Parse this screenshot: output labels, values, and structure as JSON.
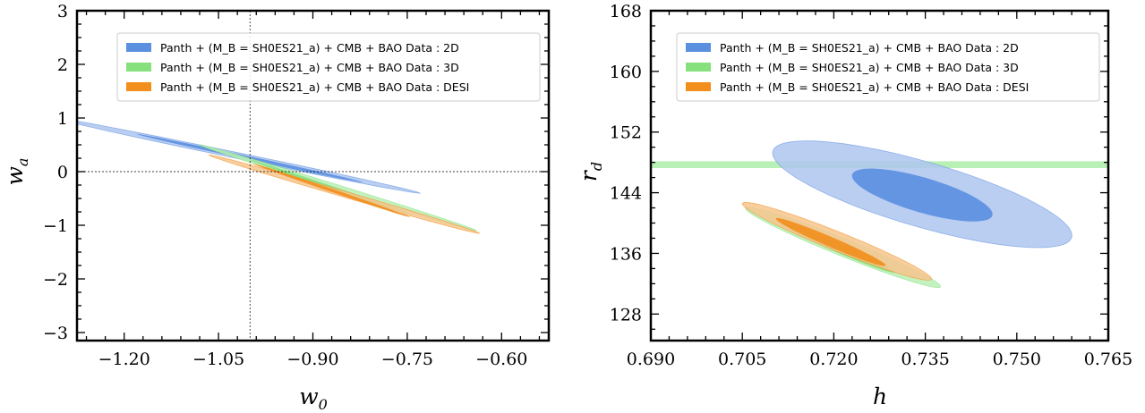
{
  "chart_data": [
    {
      "type": "contour",
      "xlabel": "w",
      "xlabel_sub": "0",
      "ylabel": "w",
      "ylabel_sub": "a",
      "xlim": [
        -1.275,
        -0.525
      ],
      "ylim": [
        -3.15,
        3.0
      ],
      "xticks": [
        "−1.20",
        "−1.05",
        "−0.90",
        "−0.75",
        "−0.60"
      ],
      "xtick_values": [
        -1.2,
        -1.05,
        -0.9,
        -0.75,
        -0.6
      ],
      "yticks": [
        "3",
        "2",
        "1",
        "0",
        "−1",
        "−2",
        "−3"
      ],
      "ytick_values": [
        3,
        2,
        1,
        0,
        -1,
        -2,
        -3
      ],
      "reference_lines": {
        "x": -1.0,
        "y": 0
      },
      "legend_position": "top-right",
      "series": [
        {
          "name": "Panth + (M_B = SH0ES21_a) + CMB + BAO Data : 2D",
          "color_outer": "#aec6ee",
          "color_inner": "#5b8fe0",
          "contour_68": {
            "center": [
              -1.0,
              0.25
            ],
            "semi_major": [
              0.18,
              -0.45
            ],
            "semi_minor": 0.032
          },
          "contour_95": {
            "center": [
              -1.02,
              0.3
            ],
            "semi_major": [
              0.29,
              -0.7
            ],
            "semi_minor": 0.055
          }
        },
        {
          "name": "Panth + (M_B = SH0ES21_a) + CMB + BAO Data : 3D",
          "color_outer": "#b9f0b5",
          "color_inner": "#86e07e",
          "contour_68": {
            "center": [
              -0.87,
              -0.3
            ],
            "semi_major": [
              0.13,
              -0.52
            ],
            "semi_minor": 0.03
          },
          "contour_95": {
            "center": [
              -0.86,
              -0.3
            ],
            "semi_major": [
              0.22,
              -0.8
            ],
            "semi_minor": 0.05
          }
        },
        {
          "name": "Panth + (M_B = SH0ES21_a) + CMB + BAO Data : DESI",
          "color_outer": "#f7c58e",
          "color_inner": "#f28e1c",
          "contour_68": {
            "center": [
              -0.87,
              -0.35
            ],
            "semi_major": [
              0.125,
              -0.5
            ],
            "semi_minor": 0.03
          },
          "contour_95": {
            "center": [
              -0.85,
              -0.42
            ],
            "semi_major": [
              0.215,
              -0.73
            ],
            "semi_minor": 0.055
          }
        }
      ]
    },
    {
      "type": "contour",
      "xlabel": "h",
      "xlabel_sub": "",
      "ylabel": "r",
      "ylabel_sub": "d",
      "xlim": [
        0.69,
        0.765
      ],
      "ylim": [
        124.5,
        168
      ],
      "xticks": [
        "0.690",
        "0.705",
        "0.720",
        "0.735",
        "0.750",
        "0.765"
      ],
      "xtick_values": [
        0.69,
        0.705,
        0.72,
        0.735,
        0.75,
        0.765
      ],
      "yticks": [
        "168",
        "160",
        "152",
        "144",
        "136",
        "128"
      ],
      "ytick_values": [
        168,
        160,
        152,
        144,
        136,
        128
      ],
      "legend_position": "top-right",
      "band": {
        "series": "3D",
        "y_center": 147.7,
        "half_width": 0.45,
        "color": "#b9f0b5"
      },
      "series": [
        {
          "name": "Panth + (M_B = SH0ES21_a) + CMB + BAO Data : 2D",
          "color_outer": "#aec6ee",
          "color_inner": "#5b8fe0",
          "contour_68": {
            "center": [
              0.7345,
              143.7
            ],
            "semi_major": [
              0.0115,
              -2.7
            ],
            "semi_minor": 2.3
          },
          "contour_95": {
            "center": [
              0.7345,
              143.8
            ],
            "semi_major": [
              0.0245,
              -5.7
            ],
            "semi_minor": 4.3
          }
        },
        {
          "name": "Panth + (M_B = SH0ES21_a) + CMB + BAO Data : 3D",
          "color_outer": "#b9f0b5",
          "color_inner": "#86e07e",
          "contour_68": {
            "center": [
              0.7205,
              136.8
            ],
            "semi_major": [
              0.0095,
              -3.3
            ],
            "semi_minor": 0.6
          },
          "contour_95": {
            "center": [
              0.7215,
              136.8
            ],
            "semi_major": [
              0.016,
              -5.2
            ],
            "semi_minor": 1.15
          }
        },
        {
          "name": "Panth + (M_B = SH0ES21_a) + CMB + BAO Data : DESI",
          "color_outer": "#f7c58e",
          "color_inner": "#f28e1c",
          "contour_68": {
            "center": [
              0.7195,
              137.5
            ],
            "semi_major": [
              0.009,
              -3.1
            ],
            "semi_minor": 0.65
          },
          "contour_95": {
            "center": [
              0.7205,
              137.6
            ],
            "semi_major": [
              0.0155,
              -5.0
            ],
            "semi_minor": 1.25
          }
        }
      ]
    }
  ]
}
